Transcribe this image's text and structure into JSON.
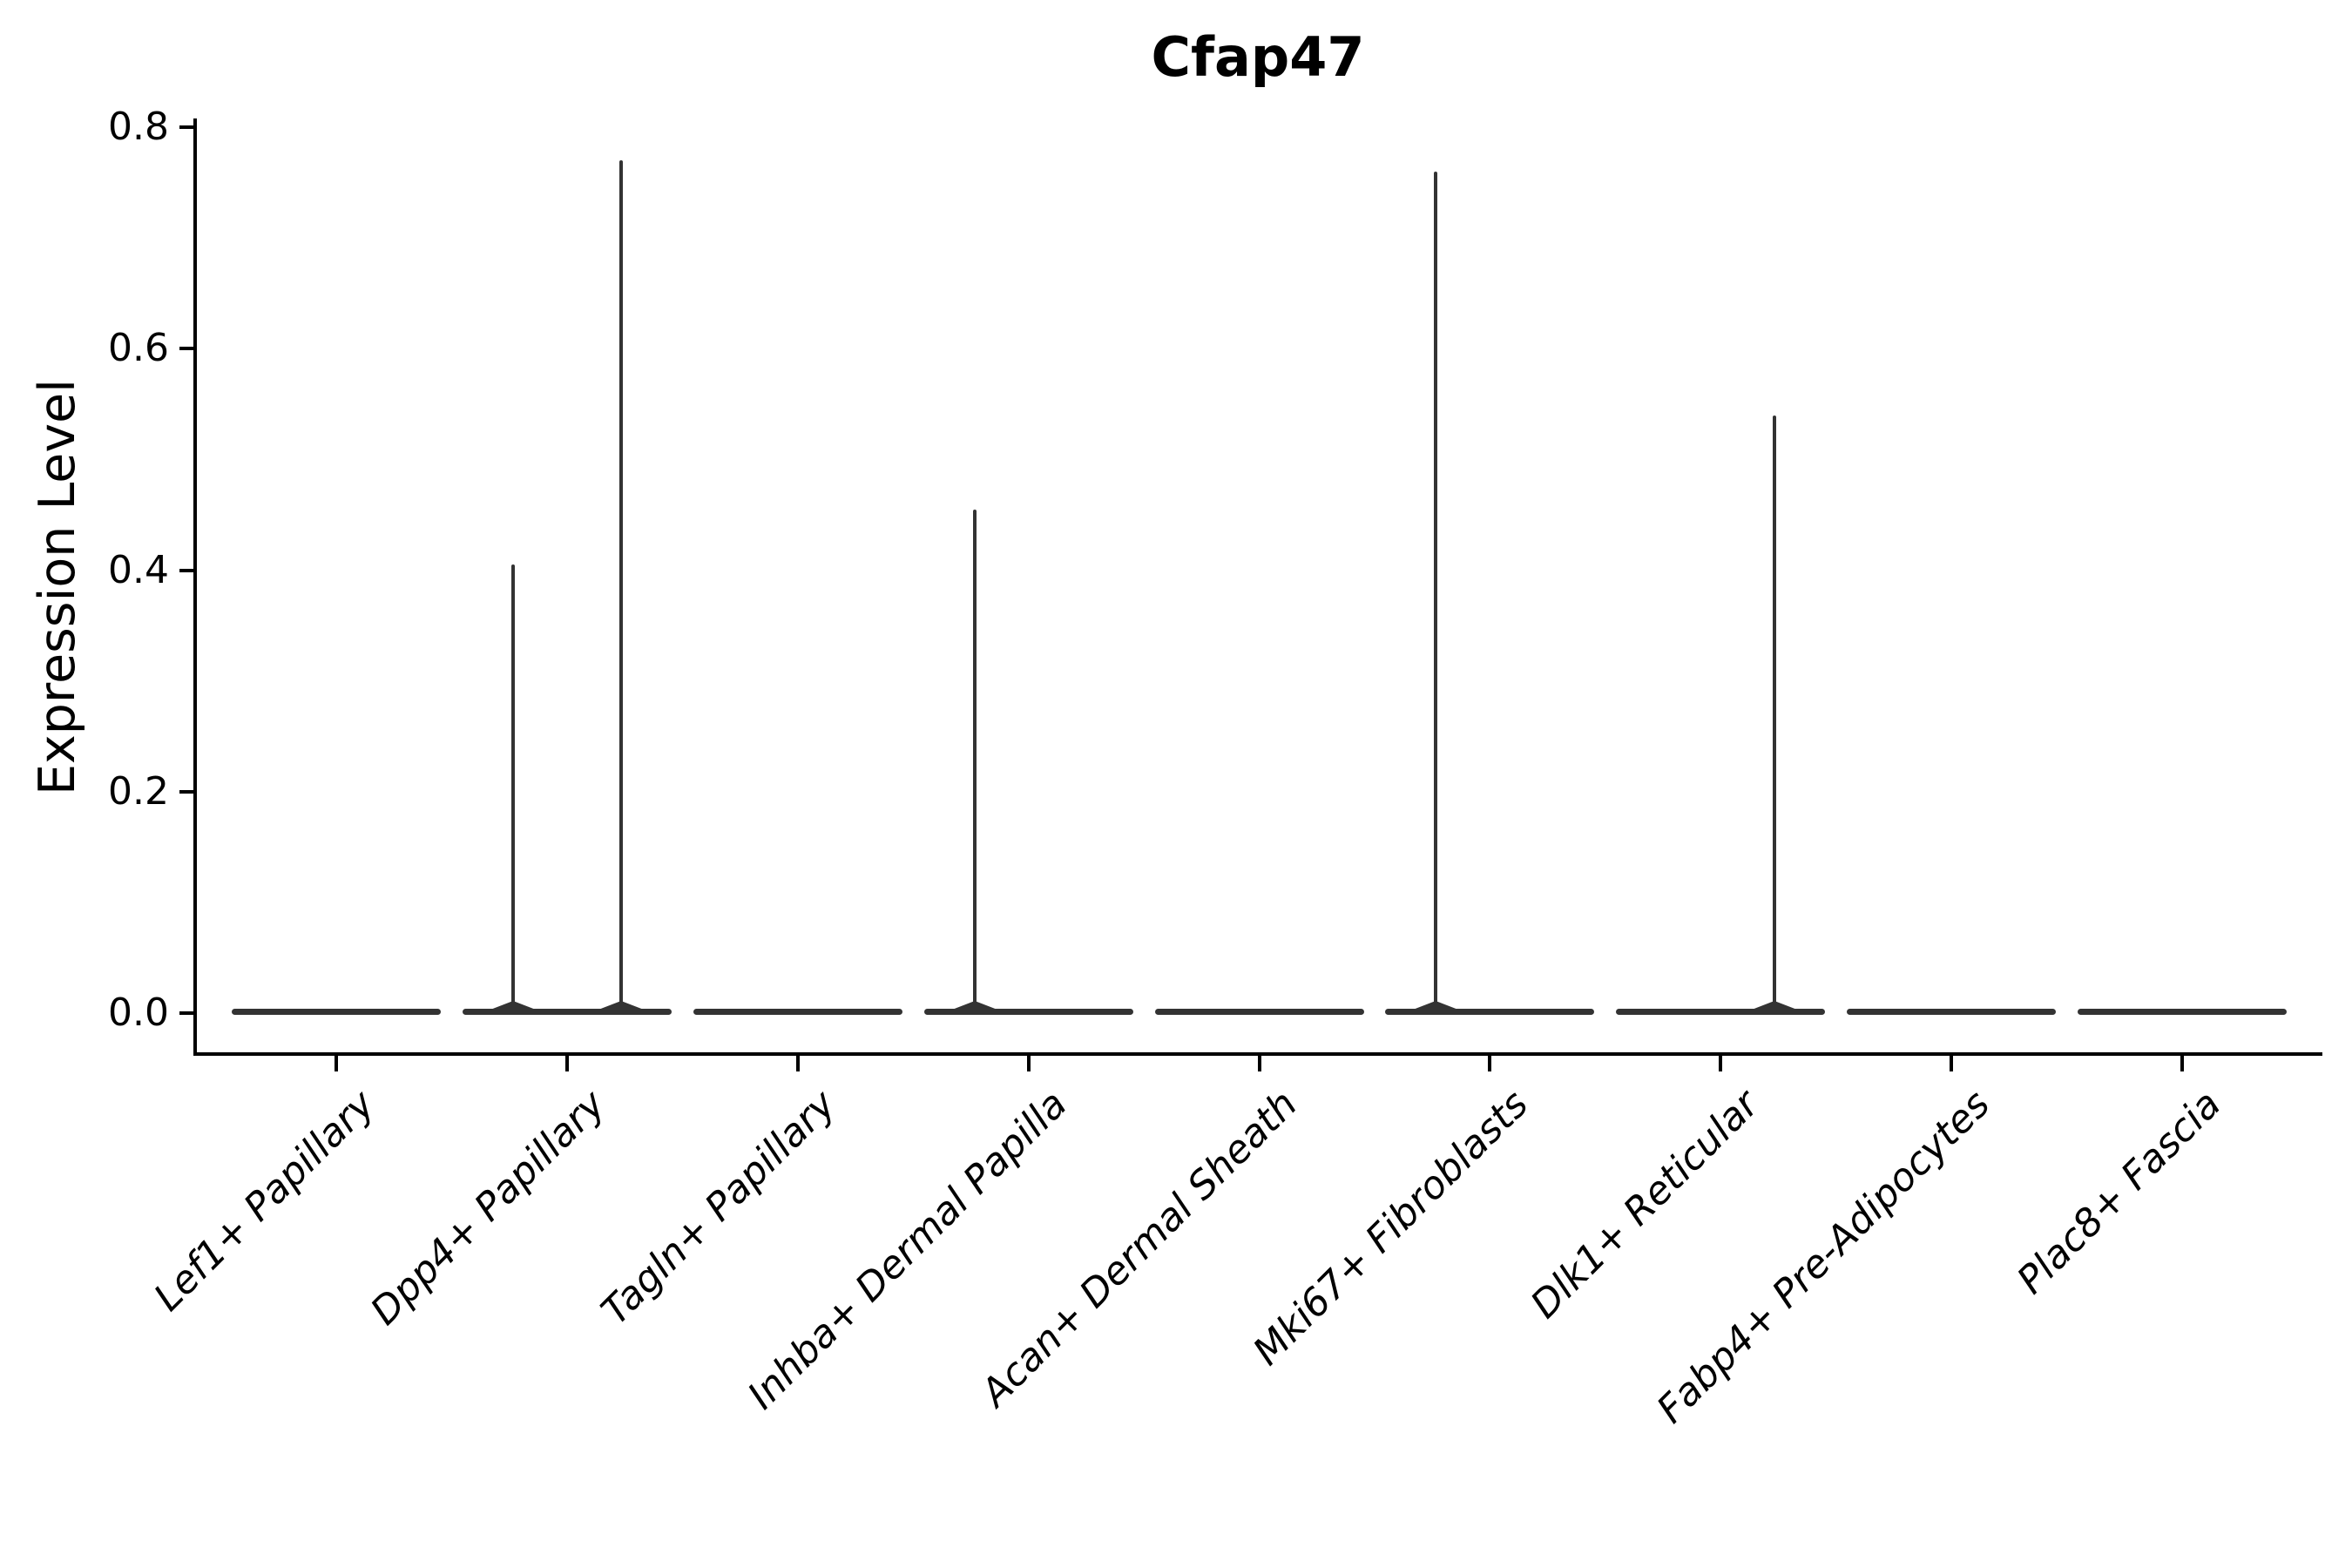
{
  "title": "Cfap47",
  "yaxis": {
    "label": "Expression Level",
    "tick_labels": [
      "0.8",
      "0.6",
      "0.4",
      "0.2",
      "0.0"
    ]
  },
  "xaxis": {
    "categories": [
      "Lef1+ Papillary",
      "Dpp4+ Papillary",
      "Tagln+ Papillary",
      "Inhba+ Dermal Papilla",
      "Acan+ Dermal Sheath",
      "Mki67+ Fibroblasts",
      "Dlk1+ Reticular",
      "Fabp4+ Pre-Adipocytes",
      "Plac8+ Fascia"
    ]
  },
  "chart_data": {
    "type": "violin",
    "title": "Cfap47",
    "xlabel": "",
    "ylabel": "Expression Level",
    "ylim": [
      0.0,
      0.8
    ],
    "yticks": [
      {
        "label": "0.0",
        "value": 0.0
      },
      {
        "label": "0.2",
        "value": 0.2
      },
      {
        "label": "0.4",
        "value": 0.4
      },
      {
        "label": "0.6",
        "value": 0.6
      },
      {
        "label": "0.8",
        "value": 0.8
      }
    ],
    "categories": [
      "Lef1+ Papillary",
      "Dpp4+ Papillary",
      "Tagln+ Papillary",
      "Inhba+ Dermal Papilla",
      "Acan+ Dermal Sheath",
      "Mki67+ Fibroblasts",
      "Dlk1+ Reticular",
      "Fabp4+ Pre-Adipocytes",
      "Plac8+ Fascia"
    ],
    "description": "Zero-inflated expression violins: every cluster shows a flattened density bar at expression 0; thin spikes mark the few cells with non-zero Cfap47 expression.",
    "violins": [
      {
        "category": "Lef1+ Papillary",
        "bulk_at_zero": true,
        "spikes": []
      },
      {
        "category": "Dpp4+ Papillary",
        "bulk_at_zero": true,
        "spikes": [
          {
            "side": "left",
            "max_expression": 0.405
          },
          {
            "side": "right",
            "max_expression": 0.77
          }
        ]
      },
      {
        "category": "Tagln+ Papillary",
        "bulk_at_zero": true,
        "spikes": []
      },
      {
        "category": "Inhba+ Dermal Papilla",
        "bulk_at_zero": true,
        "spikes": [
          {
            "side": "left",
            "max_expression": 0.455
          }
        ]
      },
      {
        "category": "Acan+ Dermal Sheath",
        "bulk_at_zero": true,
        "spikes": []
      },
      {
        "category": "Mki67+ Fibroblasts",
        "bulk_at_zero": true,
        "spikes": [
          {
            "side": "left",
            "max_expression": 0.76
          }
        ]
      },
      {
        "category": "Dlk1+ Reticular",
        "bulk_at_zero": true,
        "spikes": [
          {
            "side": "right",
            "max_expression": 0.54
          }
        ]
      },
      {
        "category": "Fabp4+ Pre-Adipocytes",
        "bulk_at_zero": true,
        "spikes": []
      },
      {
        "category": "Plac8+ Fascia",
        "bulk_at_zero": true,
        "spikes": []
      }
    ],
    "style": {
      "violin_color": "#333333",
      "axis_color": "#000000",
      "background": "#ffffff",
      "grid": false,
      "legend": "none",
      "x_label_rotation_deg": 45,
      "x_label_style": "italic"
    }
  }
}
